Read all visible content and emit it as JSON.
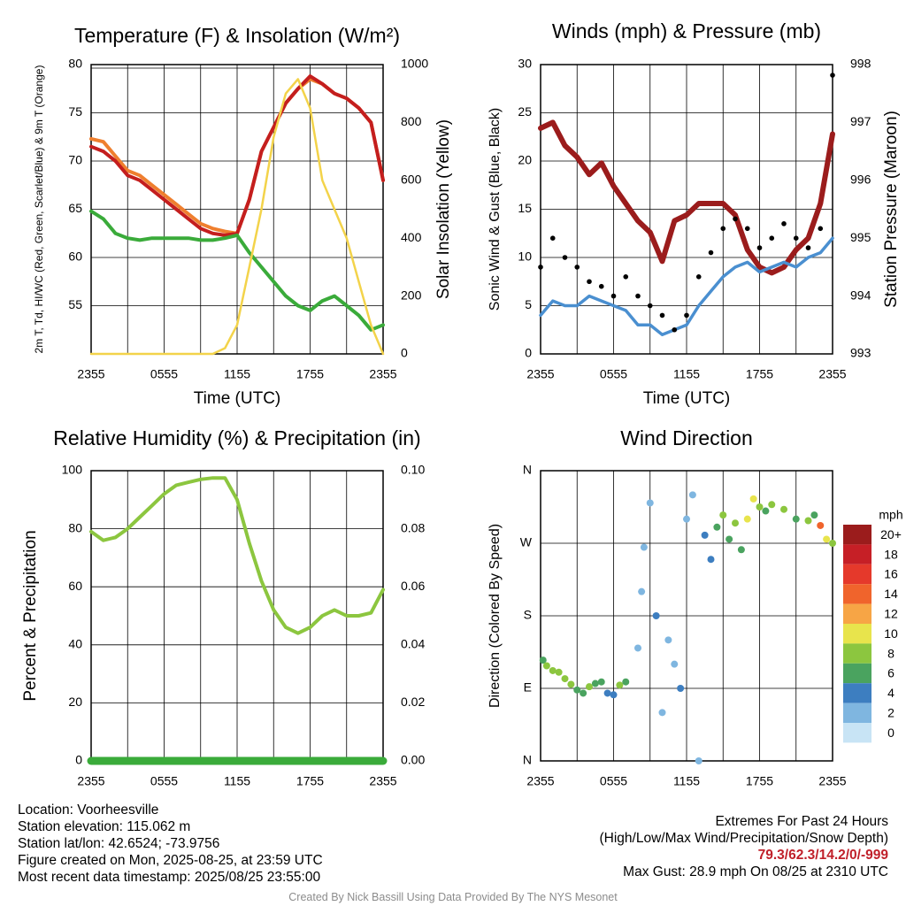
{
  "panels": {
    "temp": {
      "title": "Temperature (F) & Insolation (W/m²)",
      "ylabel_left": "2m T, Td, HI/WC (Red, Green, Scarlet/Blue) & 9m T (Orange)",
      "ylabel_right": "Solar Insolation (Yellow)",
      "xlabel": "Time (UTC)"
    },
    "wind": {
      "title": "Winds (mph) & Pressure (mb)",
      "ylabel_left": "Sonic Wind & Gust (Blue, Black)",
      "ylabel_right": "Station Pressure (Maroon)",
      "xlabel": "Time (UTC)"
    },
    "rh": {
      "title": "Relative Humidity (%) & Precipitation (in)",
      "ylabel_left": "Percent & Precipitation"
    },
    "dir": {
      "title": "Wind Direction",
      "ylabel_left": "Direction (Colored By Speed)",
      "legend_title": "mph"
    }
  },
  "chart_data": [
    {
      "type": "line",
      "id": "temp",
      "x_ticks": [
        "2355",
        "0555",
        "1155",
        "1755",
        "2355"
      ],
      "y_left_ticks": [
        "55",
        "60",
        "65",
        "70",
        "75",
        "80"
      ],
      "y_right_ticks": [
        "0",
        "200",
        "400",
        "600",
        "800",
        "1000"
      ],
      "ylim": [
        50,
        80
      ],
      "y2lim": [
        0,
        1000
      ],
      "x_hours": [
        0,
        1,
        2,
        3,
        4,
        5,
        6,
        7,
        8,
        9,
        10,
        11,
        12,
        13,
        14,
        15,
        16,
        17,
        18,
        19,
        20,
        21,
        22,
        23,
        24
      ],
      "series": [
        {
          "color": "#ef7f2e",
          "axis": "left",
          "values": [
            72.3,
            72.0,
            70.5,
            69.0,
            68.5,
            67.5,
            66.5,
            65.5,
            64.5,
            63.5,
            63.0,
            62.7,
            62.5,
            66.0,
            71.0,
            73.5,
            76.0,
            77.5,
            78.5,
            78.0,
            77.0,
            76.5,
            75.5,
            74.0,
            68.0
          ]
        },
        {
          "color": "#c41e1e",
          "axis": "left",
          "values": [
            71.5,
            71.0,
            70.0,
            68.5,
            68.0,
            67.0,
            66.0,
            65.0,
            64.0,
            63.0,
            62.5,
            62.3,
            62.5,
            66.0,
            71.0,
            73.5,
            76.0,
            77.5,
            78.8,
            78.0,
            77.0,
            76.5,
            75.5,
            74.0,
            68.0
          ]
        },
        {
          "color": "#3aab3a",
          "axis": "left",
          "values": [
            64.8,
            64.0,
            62.5,
            62.0,
            61.8,
            62.0,
            62.0,
            62.0,
            62.0,
            61.8,
            61.8,
            62.0,
            62.3,
            60.5,
            59.0,
            57.5,
            56.0,
            55.0,
            54.5,
            55.5,
            56.0,
            55.0,
            54.0,
            52.5,
            53.0
          ]
        },
        {
          "color": "#f3d34a",
          "axis": "right",
          "values": [
            0,
            0,
            0,
            0,
            0,
            0,
            0,
            0,
            0,
            0,
            0,
            20,
            100,
            300,
            500,
            750,
            900,
            950,
            850,
            600,
            500,
            400,
            250,
            100,
            0
          ]
        }
      ]
    },
    {
      "type": "line",
      "id": "wind",
      "x_ticks": [
        "2355",
        "0555",
        "1155",
        "1755",
        "2355"
      ],
      "y_left_ticks": [
        "0",
        "5",
        "10",
        "15",
        "20",
        "25",
        "30"
      ],
      "y_right_ticks": [
        "993",
        "994",
        "995",
        "996",
        "997",
        "998"
      ],
      "ylim": [
        0,
        30
      ],
      "y2lim": [
        993,
        998
      ],
      "x_hours": [
        0,
        1,
        2,
        3,
        4,
        5,
        6,
        7,
        8,
        9,
        10,
        11,
        12,
        13,
        14,
        15,
        16,
        17,
        18,
        19,
        20,
        21,
        22,
        23,
        24
      ],
      "series": [
        {
          "color": "#9b1c1c",
          "axis": "right",
          "values": [
            996.9,
            997.0,
            996.6,
            996.4,
            996.1,
            996.3,
            995.9,
            995.6,
            995.3,
            995.1,
            994.6,
            995.3,
            995.4,
            995.6,
            995.6,
            995.6,
            995.4,
            994.8,
            994.5,
            994.4,
            994.5,
            994.8,
            995.0,
            995.6,
            996.8
          ]
        },
        {
          "color": "#4a8fd0",
          "axis": "left",
          "values": [
            4.0,
            5.5,
            5.0,
            5.0,
            6.0,
            5.5,
            5.0,
            4.5,
            3.0,
            3.0,
            2.0,
            2.5,
            3.0,
            5.0,
            6.5,
            8.0,
            9.0,
            9.5,
            8.5,
            9.0,
            9.5,
            9.0,
            10.0,
            10.5,
            12.0
          ]
        },
        {
          "color": "#000000",
          "axis": "left",
          "values": [
            9.0,
            12.0,
            10.0,
            9.0,
            7.5,
            7.0,
            6.0,
            8.0,
            6.0,
            5.0,
            4.0,
            2.5,
            4.0,
            8.0,
            10.5,
            13.0,
            14.0,
            13.0,
            11.0,
            12.0,
            13.5,
            12.0,
            11.0,
            13.0,
            28.9
          ]
        }
      ]
    },
    {
      "type": "line",
      "id": "rh",
      "x_ticks": [
        "2355",
        "0555",
        "1155",
        "1755",
        "2355"
      ],
      "y_left_ticks": [
        "0",
        "20",
        "40",
        "60",
        "80",
        "100"
      ],
      "y_right_ticks": [
        "0.00",
        "0.02",
        "0.04",
        "0.06",
        "0.08",
        "0.10"
      ],
      "ylim": [
        0,
        100
      ],
      "y2lim": [
        0,
        0.1
      ],
      "x_hours": [
        0,
        1,
        2,
        3,
        4,
        5,
        6,
        7,
        8,
        9,
        10,
        11,
        12,
        13,
        14,
        15,
        16,
        17,
        18,
        19,
        20,
        21,
        22,
        23,
        24
      ],
      "series": [
        {
          "color": "#8cc63f",
          "axis": "left",
          "values": [
            79,
            76,
            77,
            80,
            84,
            88,
            92,
            95,
            96,
            97,
            97.5,
            97.5,
            90,
            75,
            62,
            52,
            46,
            44,
            46,
            50,
            52,
            50,
            50,
            51,
            59
          ]
        },
        {
          "color": "#3aab3a",
          "axis": "right",
          "values": [
            0,
            0,
            0,
            0,
            0,
            0,
            0,
            0,
            0,
            0,
            0,
            0,
            0,
            0,
            0,
            0,
            0,
            0,
            0,
            0,
            0,
            0,
            0,
            0,
            0
          ]
        }
      ]
    },
    {
      "type": "scatter",
      "id": "dir",
      "x_ticks": [
        "2355",
        "0555",
        "1155",
        "1755",
        "2355"
      ],
      "y_ticks": [
        "N",
        "E",
        "S",
        "W",
        "N"
      ],
      "ylim": [
        0,
        360
      ],
      "colorbar": {
        "labels": [
          "20+",
          "18",
          "16",
          "14",
          "12",
          "10",
          "8",
          "6",
          "4",
          "2",
          "0"
        ],
        "colors": [
          "#9b1c1c",
          "#c61f26",
          "#e5392b",
          "#f0642c",
          "#f7a545",
          "#e8e44c",
          "#8cc63f",
          "#4aa35f",
          "#3d7ec0",
          "#7fb6e0",
          "#c8e4f5"
        ]
      },
      "points": [
        [
          0.2,
          125,
          6
        ],
        [
          0.5,
          118,
          7
        ],
        [
          1.0,
          112,
          8
        ],
        [
          1.5,
          110,
          7
        ],
        [
          2.0,
          102,
          8
        ],
        [
          2.5,
          95,
          7
        ],
        [
          3.0,
          88,
          6
        ],
        [
          3.5,
          84,
          5
        ],
        [
          4.0,
          92,
          7
        ],
        [
          4.5,
          96,
          5
        ],
        [
          5.0,
          98,
          6
        ],
        [
          5.5,
          84,
          4
        ],
        [
          6.0,
          82,
          4
        ],
        [
          6.5,
          94,
          7
        ],
        [
          7.0,
          98,
          5
        ],
        [
          8.0,
          140,
          2
        ],
        [
          8.3,
          210,
          1
        ],
        [
          8.5,
          265,
          2
        ],
        [
          9.0,
          320,
          1
        ],
        [
          9.5,
          180,
          3
        ],
        [
          10.0,
          60,
          1
        ],
        [
          10.5,
          150,
          2
        ],
        [
          11.0,
          120,
          2
        ],
        [
          11.5,
          90,
          3
        ],
        [
          12.0,
          300,
          1
        ],
        [
          12.5,
          330,
          2
        ],
        [
          13.0,
          0,
          1
        ],
        [
          13.5,
          280,
          4
        ],
        [
          14.0,
          250,
          3
        ],
        [
          14.5,
          290,
          6
        ],
        [
          15.0,
          305,
          7
        ],
        [
          15.5,
          275,
          5
        ],
        [
          16.0,
          295,
          8
        ],
        [
          16.5,
          262,
          6
        ],
        [
          17.0,
          300,
          9
        ],
        [
          17.5,
          325,
          10
        ],
        [
          18.0,
          315,
          8
        ],
        [
          18.5,
          310,
          6
        ],
        [
          19.0,
          318,
          7
        ],
        [
          20.0,
          312,
          7
        ],
        [
          21.0,
          300,
          6
        ],
        [
          22.0,
          298,
          8
        ],
        [
          22.5,
          305,
          6
        ],
        [
          23.0,
          292,
          14
        ],
        [
          23.5,
          275,
          9
        ],
        [
          24.0,
          270,
          8
        ]
      ]
    }
  ],
  "info": {
    "location": "Location: Voorheesville",
    "elevation": "Station elevation: 115.062 m",
    "latlon": "Station lat/lon: 42.6524; -73.9756",
    "created": "Figure created on Mon, 2025-08-25, at 23:59 UTC",
    "recent": "Most recent data timestamp: 2025/08/25 23:55:00",
    "extremes_title": "Extremes For Past 24 Hours",
    "extremes_subtitle": "(High/Low/Max Wind/Precipitation/Snow Depth)",
    "extremes_values": "79.3/62.3/14.2/0/-999",
    "max_gust": "Max Gust: 28.9 mph On 08/25 at 2310 UTC"
  },
  "credit": "Created By Nick Bassill Using Data Provided By The NYS Mesonet"
}
